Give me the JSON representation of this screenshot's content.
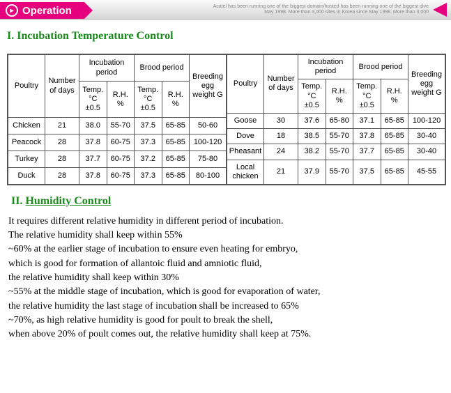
{
  "header": {
    "tab_label": "Operation",
    "blurb_line1": "Acatel has been running one of the biggest domain/hosted has been running one of the biggest dive",
    "blurb_line2": "May 1998. More than 3,000 sites in Korea since May 1998. More than 3,000"
  },
  "section1": {
    "heading": "I. Incubation Temperature Control",
    "headers": {
      "poultry": "Poultry",
      "days": "Number of days",
      "incub": "Incubation period",
      "brood": "Brood period",
      "breed": "Breeding egg weight G",
      "temp": "Temp. °C ±0.5",
      "rh": "R.H. %"
    },
    "left_rows": [
      {
        "poultry": "Chicken",
        "days": "21",
        "it": "38.0",
        "ir": "55-70",
        "bt": "37.5",
        "br": "65-85",
        "w": "50-60"
      },
      {
        "poultry": "Peacock",
        "days": "28",
        "it": "37.8",
        "ir": "60-75",
        "bt": "37.3",
        "br": "65-85",
        "w": "100-120"
      },
      {
        "poultry": "Turkey",
        "days": "28",
        "it": "37.7",
        "ir": "60-75",
        "bt": "37.2",
        "br": "65-85",
        "w": "75-80"
      },
      {
        "poultry": "Duck",
        "days": "28",
        "it": "37.8",
        "ir": "60-75",
        "bt": "37.3",
        "br": "65-85",
        "w": "80-100"
      }
    ],
    "right_rows": [
      {
        "poultry": "Goose",
        "days": "30",
        "it": "37.6",
        "ir": "65-80",
        "bt": "37.1",
        "br": "65-85",
        "w": "100-120"
      },
      {
        "poultry": "Dove",
        "days": "18",
        "it": "38.5",
        "ir": "55-70",
        "bt": "37.8",
        "br": "65-85",
        "w": "30-40"
      },
      {
        "poultry": "Pheasant",
        "days": "24",
        "it": "38.2",
        "ir": "55-70",
        "bt": "37.7",
        "br": "65-85",
        "w": "30-40"
      },
      {
        "poultry": "Local chicken",
        "days": "21",
        "it": "37.9",
        "ir": "55-70",
        "bt": "37.5",
        "br": "65-85",
        "w": "45-55"
      }
    ]
  },
  "section2": {
    "roman": "II.",
    "title": "Humidity Control",
    "lines": [
      "It requires different relative humidity in different period of incubation.",
      "The relative humidity shall keep within 55%",
      "~60% at the earlier stage of incubation to ensure even heating for embryo,",
      "which is good for formation of allantoic fluid and amniotic fluid,",
      " the relative humidity shall keep within 30%",
      "~55% at the middle stage of incubation, which is good for evaporation of water,",
      "the relative humidity the last stage of incubation shall be increased to 65%",
      "~70%, as high relative humidity is good for poult to break the shell,",
      "when above 20% of poult comes out, the relative humidity shall keep at 75%."
    ]
  }
}
